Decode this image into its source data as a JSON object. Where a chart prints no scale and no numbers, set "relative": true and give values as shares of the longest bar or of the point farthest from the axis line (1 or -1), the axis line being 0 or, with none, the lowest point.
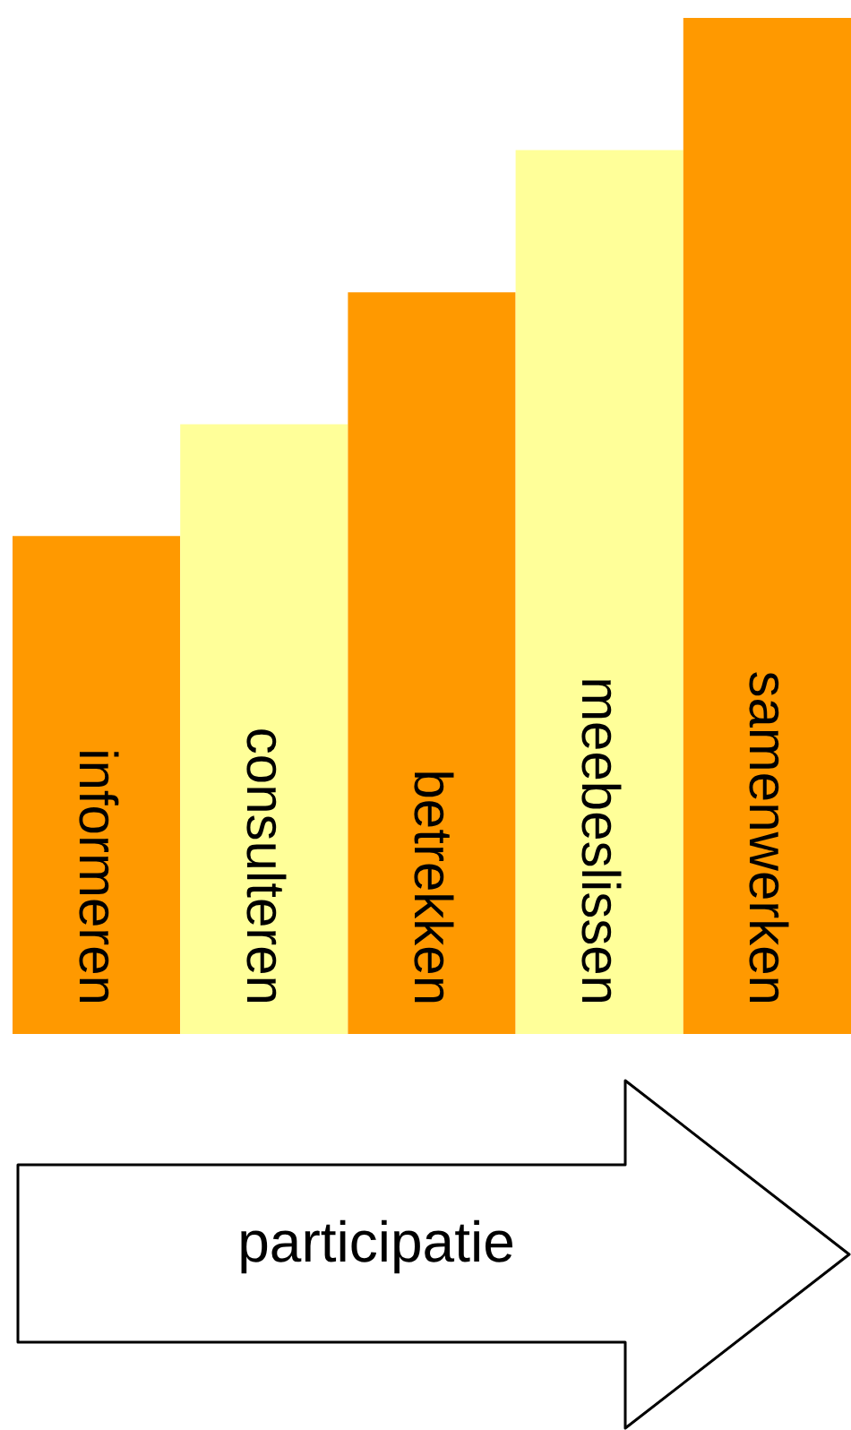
{
  "chart_data": {
    "type": "bar",
    "relative": true,
    "xlabel": "participatie",
    "categories": [
      "informeren",
      "consulteren",
      "betrekken",
      "meebeslissen",
      "samenwerken"
    ],
    "values": [
      0.49,
      0.6,
      0.73,
      0.87,
      1
    ],
    "colors": [
      "#ff9900",
      "#ffff99",
      "#ff9900",
      "#ffff99",
      "#ff9900"
    ]
  }
}
